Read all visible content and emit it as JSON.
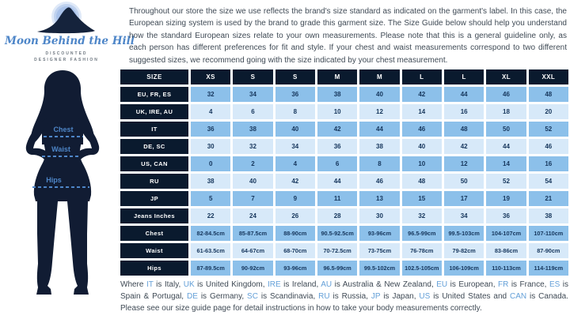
{
  "logo": {
    "brand_name": "Moon Behind the Hill",
    "tagline_line1": "DISCOUNTED",
    "tagline_line2": "DESIGNER FASHION"
  },
  "intro_paragraph": "Throughout our store the size we use reflects the brand's size standard as indicated on the garment's label. In this case, the European sizing system is used by the brand to grade this garment size. The Size Guide below should help you understand how the standard European sizes relate to your own measurements. Please note that this is a general guideline only, as each person has different preferences for fit and style. If your chest and waist measurements correspond to two different suggested sizes, we recommend going with the size indicated by your chest measurement.",
  "figure": {
    "labels": [
      "Chest",
      "Waist",
      "Hips"
    ]
  },
  "size_table": {
    "header": [
      "SIZE",
      "XS",
      "S",
      "S",
      "M",
      "M",
      "L",
      "L",
      "XL",
      "XXL"
    ],
    "rows": [
      {
        "label": "EU, FR, ES",
        "values": [
          "32",
          "34",
          "36",
          "38",
          "40",
          "42",
          "44",
          "46",
          "48"
        ]
      },
      {
        "label": "UK, IRE, AU",
        "values": [
          "4",
          "6",
          "8",
          "10",
          "12",
          "14",
          "16",
          "18",
          "20"
        ]
      },
      {
        "label": "IT",
        "values": [
          "36",
          "38",
          "40",
          "42",
          "44",
          "46",
          "48",
          "50",
          "52"
        ]
      },
      {
        "label": "DE, SC",
        "values": [
          "30",
          "32",
          "34",
          "36",
          "38",
          "40",
          "42",
          "44",
          "46"
        ]
      },
      {
        "label": "US, CAN",
        "values": [
          "0",
          "2",
          "4",
          "6",
          "8",
          "10",
          "12",
          "14",
          "16"
        ]
      },
      {
        "label": "RU",
        "values": [
          "38",
          "40",
          "42",
          "44",
          "46",
          "48",
          "50",
          "52",
          "54"
        ]
      },
      {
        "label": "JP",
        "values": [
          "5",
          "7",
          "9",
          "11",
          "13",
          "15",
          "17",
          "19",
          "21"
        ]
      },
      {
        "label": "Jeans Inches",
        "values": [
          "22",
          "24",
          "26",
          "28",
          "30",
          "32",
          "34",
          "36",
          "38"
        ]
      },
      {
        "label": "Chest",
        "values": [
          "82-84.5cm",
          "85-87.5cm",
          "88-90cm",
          "90.5-92.5cm",
          "93-96cm",
          "96.5-99cm",
          "99.5-103cm",
          "104-107cm",
          "107-110cm"
        ]
      },
      {
        "label": "Waist",
        "values": [
          "61-63.5cm",
          "64-67cm",
          "68-70cm",
          "70-72.5cm",
          "73-75cm",
          "76-78cm",
          "79-82cm",
          "83-86cm",
          "87-90cm"
        ]
      },
      {
        "label": "Hips",
        "values": [
          "87-89.5cm",
          "90-92cm",
          "93-96cm",
          "96.5-99cm",
          "99.5-102cm",
          "102.5-105cm",
          "106-109cm",
          "110-113cm",
          "114-119cm"
        ]
      }
    ]
  },
  "footer_paragraph": {
    "segments": [
      {
        "text": "Where ",
        "hl": false
      },
      {
        "text": "IT",
        "hl": true
      },
      {
        "text": " is Italy, ",
        "hl": false
      },
      {
        "text": "UK",
        "hl": true
      },
      {
        "text": " is United Kingdom, ",
        "hl": false
      },
      {
        "text": "IRE",
        "hl": true
      },
      {
        "text": " is Ireland, ",
        "hl": false
      },
      {
        "text": "AU",
        "hl": true
      },
      {
        "text": " is Australia & New Zealand, ",
        "hl": false
      },
      {
        "text": "EU",
        "hl": true
      },
      {
        "text": " is European, ",
        "hl": false
      },
      {
        "text": "FR",
        "hl": true
      },
      {
        "text": " is France, ",
        "hl": false
      },
      {
        "text": "ES",
        "hl": true
      },
      {
        "text": " is Spain & Portugal, ",
        "hl": false
      },
      {
        "text": "DE",
        "hl": true
      },
      {
        "text": " is Germany, ",
        "hl": false
      },
      {
        "text": "SC",
        "hl": true
      },
      {
        "text": " is Scandinavia, ",
        "hl": false
      },
      {
        "text": "RU",
        "hl": true
      },
      {
        "text": " is Russia, ",
        "hl": false
      },
      {
        "text": "JP",
        "hl": true
      },
      {
        "text": " is Japan, ",
        "hl": false
      },
      {
        "text": "US",
        "hl": true
      },
      {
        "text": " is United States and ",
        "hl": false
      },
      {
        "text": "CAN",
        "hl": true
      },
      {
        "text": " is Canada. Please see our size guide page for detail instructions in how to take your body measurements correctly.",
        "hl": false
      }
    ]
  },
  "colors": {
    "header_navy": "#0a1a2e",
    "cell_blue_medium": "#8cc0ea",
    "cell_blue_light": "#d7e9f9",
    "cell_text": "#16365c",
    "abbr_blue": "#64a0d8",
    "body_text": "#3f4a55",
    "figure_navy": "#111c33",
    "label_blue": "#4e86c8",
    "moon_glow": "#dfe9f8",
    "moon_mid": "#bfd2ef",
    "moon_core": "#a9c2ea"
  }
}
